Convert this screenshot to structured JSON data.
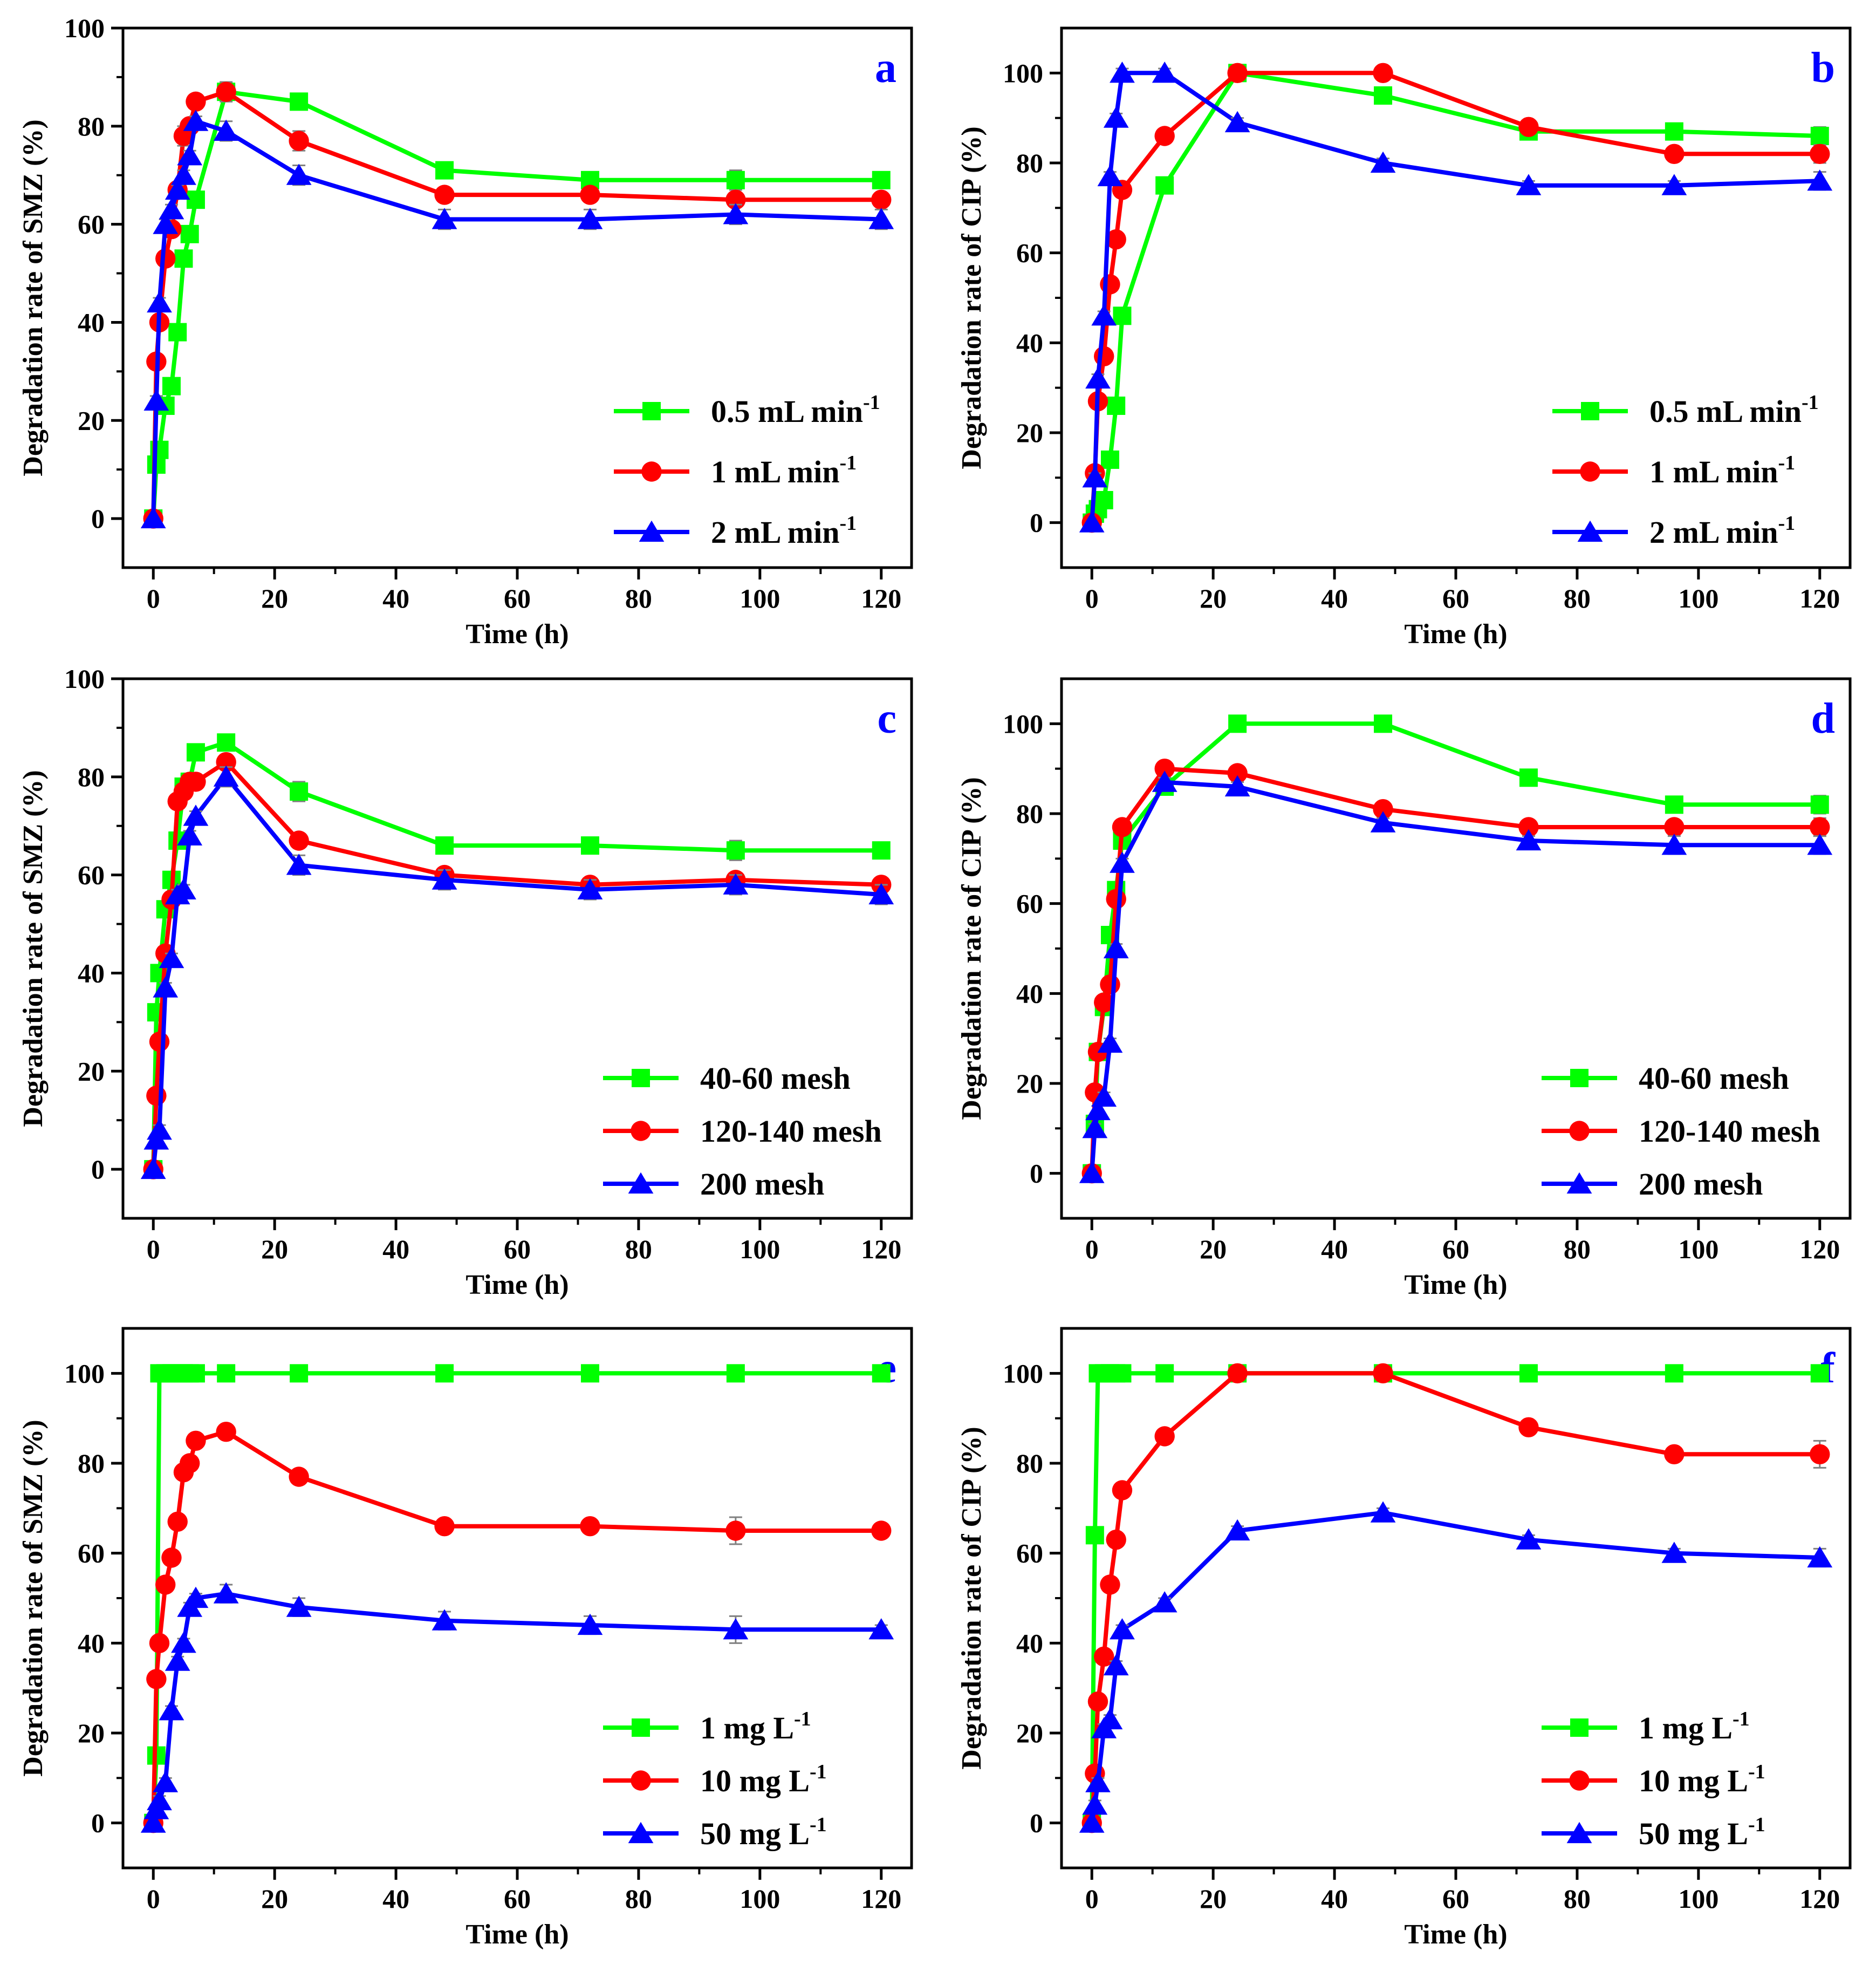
{
  "chart_data": [
    {
      "type": "line",
      "panel_label": "a",
      "xlabel": "Time (h)",
      "ylabel": "Degradation rate of SMZ (%)",
      "xlim": [
        -5,
        125
      ],
      "ylim": [
        -10,
        100
      ],
      "xticks": [
        0,
        20,
        40,
        60,
        80,
        100,
        120
      ],
      "yticks": [
        0,
        20,
        40,
        60,
        80,
        100
      ],
      "legend_position": "right",
      "series": [
        {
          "name": "0.5 mL min",
          "sup": "-1",
          "color": "#00ff00",
          "marker": "square",
          "x": [
            0,
            0.5,
            1,
            2,
            3,
            4,
            5,
            6,
            7,
            12,
            24,
            48,
            72,
            96,
            120
          ],
          "y": [
            0,
            11,
            14,
            23,
            27,
            38,
            53,
            58,
            65,
            87,
            85,
            71,
            69,
            69,
            69
          ],
          "err": [
            0,
            1,
            1,
            1,
            1,
            1,
            1,
            1,
            1,
            1,
            1,
            1,
            1,
            2,
            1
          ]
        },
        {
          "name": "1 mL min",
          "sup": "-1",
          "color": "#ff0000",
          "marker": "circle",
          "x": [
            0,
            0.5,
            1,
            2,
            3,
            4,
            5,
            6,
            7,
            12,
            24,
            48,
            72,
            96,
            120
          ],
          "y": [
            0,
            32,
            40,
            53,
            59,
            67,
            78,
            80,
            85,
            87,
            77,
            66,
            66,
            65,
            65
          ],
          "err": [
            0,
            1,
            1,
            1,
            1,
            1,
            2,
            1,
            1,
            2,
            2,
            1,
            1,
            1,
            1
          ]
        },
        {
          "name": "2 mL min",
          "sup": "-1",
          "color": "#0000ff",
          "marker": "triangle",
          "x": [
            0,
            0.5,
            1,
            2,
            3,
            4,
            5,
            6,
            7,
            12,
            24,
            48,
            72,
            96,
            120
          ],
          "y": [
            0,
            24,
            44,
            60,
            63,
            67,
            70,
            74,
            81,
            79,
            70,
            61,
            61,
            62,
            61
          ],
          "err": [
            0,
            1,
            1,
            1,
            1,
            1,
            1,
            1,
            1,
            2,
            2,
            2,
            2,
            2,
            2
          ]
        }
      ]
    },
    {
      "type": "line",
      "panel_label": "b",
      "xlabel": "Time (h)",
      "ylabel": "Degradation rate of CIP (%)",
      "xlim": [
        -5,
        125
      ],
      "ylim": [
        -10,
        110
      ],
      "xticks": [
        0,
        20,
        40,
        60,
        80,
        100,
        120
      ],
      "yticks": [
        0,
        20,
        40,
        60,
        80,
        100
      ],
      "legend_position": "right",
      "series": [
        {
          "name": "0.5 mL min",
          "sup": "-1",
          "color": "#00ff00",
          "marker": "square",
          "x": [
            0,
            0.5,
            1,
            2,
            3,
            4,
            5,
            12,
            24,
            48,
            72,
            96,
            120
          ],
          "y": [
            0,
            2,
            3,
            5,
            14,
            26,
            46,
            75,
            100,
            95,
            87,
            87,
            86
          ],
          "err": [
            0,
            1,
            1,
            1,
            1,
            1,
            1,
            1,
            1,
            1,
            1,
            1,
            2
          ]
        },
        {
          "name": "1 mL min",
          "sup": "-1",
          "color": "#ff0000",
          "marker": "circle",
          "x": [
            0,
            0.5,
            1,
            2,
            3,
            4,
            5,
            12,
            24,
            48,
            72,
            96,
            120
          ],
          "y": [
            0,
            11,
            27,
            37,
            53,
            63,
            74,
            86,
            100,
            100,
            88,
            82,
            82
          ],
          "err": [
            0,
            1,
            1,
            1,
            1,
            1,
            1,
            1,
            1,
            1,
            1,
            1,
            2
          ]
        },
        {
          "name": "2 mL min",
          "sup": "-1",
          "color": "#0000ff",
          "marker": "triangle",
          "x": [
            0,
            0.5,
            1,
            2,
            3,
            4,
            5,
            12,
            24,
            48,
            72,
            96,
            120
          ],
          "y": [
            0,
            10,
            32,
            46,
            77,
            90,
            100,
            100,
            89,
            80,
            75,
            75,
            76
          ],
          "err": [
            0,
            1,
            1,
            1,
            1,
            1,
            1,
            1,
            1,
            1,
            1,
            1,
            2
          ]
        }
      ]
    },
    {
      "type": "line",
      "panel_label": "c",
      "xlabel": "Time (h)",
      "ylabel": "Degradation rate of SMZ (%)",
      "xlim": [
        -5,
        125
      ],
      "ylim": [
        -10,
        100
      ],
      "xticks": [
        0,
        20,
        40,
        60,
        80,
        100,
        120
      ],
      "yticks": [
        0,
        20,
        40,
        60,
        80,
        100
      ],
      "legend_position": "bottom-right",
      "series": [
        {
          "name": "40-60 mesh",
          "sup": "",
          "color": "#00ff00",
          "marker": "square",
          "x": [
            0,
            0.5,
            1,
            2,
            3,
            4,
            5,
            6,
            7,
            12,
            24,
            48,
            72,
            96,
            120
          ],
          "y": [
            0,
            32,
            40,
            53,
            59,
            67,
            78,
            79,
            85,
            87,
            77,
            66,
            66,
            65,
            65
          ],
          "err": [
            0,
            1,
            1,
            1,
            1,
            1,
            1,
            1,
            1,
            1,
            2,
            1,
            1,
            2,
            1
          ]
        },
        {
          "name": "120-140 mesh",
          "sup": "",
          "color": "#ff0000",
          "marker": "circle",
          "x": [
            0,
            0.5,
            1,
            2,
            3,
            4,
            5,
            6,
            7,
            12,
            24,
            48,
            72,
            96,
            120
          ],
          "y": [
            0,
            15,
            26,
            44,
            55,
            75,
            77,
            79,
            79,
            83,
            67,
            60,
            58,
            59,
            58
          ],
          "err": [
            0,
            1,
            1,
            1,
            1,
            1,
            1,
            1,
            1,
            1,
            1,
            1,
            1,
            1,
            1
          ]
        },
        {
          "name": "200 mesh",
          "sup": "",
          "color": "#0000ff",
          "marker": "triangle",
          "x": [
            0,
            0.5,
            1,
            2,
            3,
            4,
            5,
            6,
            7,
            12,
            24,
            48,
            72,
            96,
            120
          ],
          "y": [
            0,
            6,
            8,
            37,
            43,
            56,
            57,
            68,
            72,
            80,
            62,
            59,
            57,
            58,
            56
          ],
          "err": [
            0,
            1,
            1,
            1,
            1,
            1,
            1,
            1,
            1,
            2,
            2,
            2,
            2,
            2,
            2
          ]
        }
      ]
    },
    {
      "type": "line",
      "panel_label": "d",
      "xlabel": "Time (h)",
      "ylabel": "Degradation rate of CIP (%)",
      "xlim": [
        -5,
        125
      ],
      "ylim": [
        -10,
        110
      ],
      "xticks": [
        0,
        20,
        40,
        60,
        80,
        100,
        120
      ],
      "yticks": [
        0,
        20,
        40,
        60,
        80,
        100
      ],
      "legend_position": "bottom-right",
      "series": [
        {
          "name": "40-60 mesh",
          "sup": "",
          "color": "#00ff00",
          "marker": "square",
          "x": [
            0,
            0.5,
            1,
            2,
            3,
            4,
            5,
            12,
            24,
            48,
            72,
            96,
            120
          ],
          "y": [
            0,
            11,
            27,
            37,
            53,
            63,
            74,
            86,
            100,
            100,
            88,
            82,
            82
          ],
          "err": [
            0,
            1,
            1,
            1,
            1,
            1,
            1,
            1,
            1,
            1,
            1,
            1,
            2
          ]
        },
        {
          "name": "120-140 mesh",
          "sup": "",
          "color": "#ff0000",
          "marker": "circle",
          "x": [
            0,
            0.5,
            1,
            2,
            3,
            4,
            5,
            12,
            24,
            48,
            72,
            96,
            120
          ],
          "y": [
            0,
            18,
            27,
            38,
            42,
            61,
            77,
            90,
            89,
            81,
            77,
            77,
            77
          ],
          "err": [
            0,
            1,
            1,
            1,
            1,
            1,
            1,
            1,
            1,
            1,
            1,
            1,
            2
          ]
        },
        {
          "name": "200 mesh",
          "sup": "",
          "color": "#0000ff",
          "marker": "triangle",
          "x": [
            0,
            0.5,
            1,
            2,
            3,
            4,
            5,
            12,
            24,
            48,
            72,
            96,
            120
          ],
          "y": [
            0,
            10,
            14,
            17,
            29,
            50,
            69,
            87,
            86,
            78,
            74,
            73,
            73
          ],
          "err": [
            0,
            1,
            1,
            1,
            1,
            1,
            1,
            1,
            1,
            1,
            1,
            2,
            2
          ]
        }
      ]
    },
    {
      "type": "line",
      "panel_label": "e",
      "xlabel": "Time (h)",
      "ylabel": "Degradation rate of SMZ (%)",
      "xlim": [
        -5,
        125
      ],
      "ylim": [
        -10,
        110
      ],
      "xticks": [
        0,
        20,
        40,
        60,
        80,
        100,
        120
      ],
      "yticks": [
        0,
        20,
        40,
        60,
        80,
        100
      ],
      "legend_position": "bottom-right",
      "series": [
        {
          "name": "1 mg L",
          "sup": "-1",
          "color": "#00ff00",
          "marker": "square",
          "x": [
            0,
            0.5,
            1,
            2,
            3,
            4,
            5,
            6,
            7,
            12,
            24,
            48,
            72,
            96,
            120
          ],
          "y": [
            0,
            15,
            100,
            100,
            100,
            100,
            100,
            100,
            100,
            100,
            100,
            100,
            100,
            100,
            100
          ],
          "err": [
            0,
            0,
            0,
            0,
            0,
            0,
            0,
            0,
            0,
            0,
            0,
            0,
            0,
            0,
            0
          ]
        },
        {
          "name": "10 mg L",
          "sup": "-1",
          "color": "#ff0000",
          "marker": "circle",
          "x": [
            0,
            0.5,
            1,
            2,
            3,
            4,
            5,
            6,
            7,
            12,
            24,
            48,
            72,
            96,
            120
          ],
          "y": [
            0,
            32,
            40,
            53,
            59,
            67,
            78,
            80,
            85,
            87,
            77,
            66,
            66,
            65,
            65
          ],
          "err": [
            0,
            1,
            1,
            1,
            1,
            1,
            1,
            1,
            1,
            1,
            1,
            1,
            1,
            3,
            1
          ]
        },
        {
          "name": "50 mg L",
          "sup": "-1",
          "color": "#0000ff",
          "marker": "triangle",
          "x": [
            0,
            0.5,
            1,
            2,
            3,
            4,
            5,
            6,
            7,
            12,
            24,
            48,
            72,
            96,
            120
          ],
          "y": [
            0,
            3,
            5,
            9,
            25,
            36,
            40,
            48,
            50,
            51,
            48,
            45,
            44,
            43,
            43
          ],
          "err": [
            0,
            1,
            1,
            1,
            1,
            1,
            1,
            1,
            1,
            2,
            2,
            2,
            2,
            3,
            1
          ]
        }
      ]
    },
    {
      "type": "line",
      "panel_label": "f",
      "xlabel": "Time (h)",
      "ylabel": "Degradation rate of CIP (%)",
      "xlim": [
        -5,
        125
      ],
      "ylim": [
        -10,
        110
      ],
      "xticks": [
        0,
        20,
        40,
        60,
        80,
        100,
        120
      ],
      "yticks": [
        0,
        20,
        40,
        60,
        80,
        100
      ],
      "legend_position": "bottom-right",
      "series": [
        {
          "name": "1 mg L",
          "sup": "-1",
          "color": "#00ff00",
          "marker": "square",
          "x": [
            0,
            0.5,
            1,
            2,
            3,
            4,
            5,
            12,
            24,
            48,
            72,
            96,
            120
          ],
          "y": [
            0,
            64,
            100,
            100,
            100,
            100,
            100,
            100,
            100,
            100,
            100,
            100,
            100
          ],
          "err": [
            0,
            0,
            0,
            0,
            0,
            0,
            0,
            0,
            0,
            0,
            0,
            0,
            0
          ]
        },
        {
          "name": "10 mg L",
          "sup": "-1",
          "color": "#ff0000",
          "marker": "circle",
          "x": [
            0,
            0.5,
            1,
            2,
            3,
            4,
            5,
            12,
            24,
            48,
            72,
            96,
            120
          ],
          "y": [
            0,
            11,
            27,
            37,
            53,
            63,
            74,
            86,
            100,
            100,
            88,
            82,
            82
          ],
          "err": [
            0,
            1,
            1,
            1,
            1,
            1,
            1,
            1,
            1,
            1,
            1,
            1,
            3
          ]
        },
        {
          "name": "50 mg L",
          "sup": "-1",
          "color": "#0000ff",
          "marker": "triangle",
          "x": [
            0,
            0.5,
            1,
            2,
            3,
            4,
            5,
            12,
            24,
            48,
            72,
            96,
            120
          ],
          "y": [
            0,
            4,
            9,
            21,
            23,
            35,
            43,
            49,
            65,
            69,
            63,
            60,
            59
          ],
          "err": [
            0,
            1,
            1,
            1,
            1,
            1,
            1,
            1,
            1,
            1,
            1,
            1,
            2
          ]
        }
      ]
    }
  ]
}
